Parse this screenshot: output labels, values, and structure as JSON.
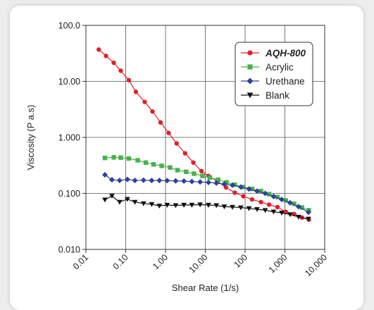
{
  "chart_data": {
    "type": "line",
    "title": "",
    "xlabel": "Shear Rate (1/s)",
    "ylabel": "Viscosity (P a.s)",
    "x_scale": "log",
    "y_scale": "log",
    "xlim": [
      0.01,
      10000
    ],
    "ylim": [
      0.01,
      100
    ],
    "x_tick_values": [
      0.01,
      0.1,
      1,
      10,
      100,
      1000,
      10000
    ],
    "x_tick_labels": [
      "0.01",
      "0.10",
      "1.00",
      "10.00",
      "100",
      "1,000",
      "10,000"
    ],
    "y_tick_values": [
      0.01,
      0.1,
      1,
      10,
      100
    ],
    "y_tick_labels": [
      "0.010",
      "0.100",
      "1.000",
      "10.00",
      "100.0"
    ],
    "grid": true,
    "legend_position": "top-right",
    "series": [
      {
        "name": "AQH-800",
        "color": "#e41f26",
        "label_color": "#1a73c2",
        "marker": "circle",
        "points": [
          [
            0.021,
            37
          ],
          [
            0.032,
            28.5
          ],
          [
            0.05,
            21.5
          ],
          [
            0.075,
            15.5
          ],
          [
            0.12,
            10.5
          ],
          [
            0.18,
            6.5
          ],
          [
            0.3,
            4.3
          ],
          [
            0.47,
            2.9
          ],
          [
            0.75,
            1.85
          ],
          [
            1.2,
            1.2
          ],
          [
            1.9,
            0.78
          ],
          [
            3.1,
            0.52
          ],
          [
            5,
            0.355
          ],
          [
            8,
            0.25
          ],
          [
            12,
            0.205
          ],
          [
            20,
            0.165
          ],
          [
            33,
            0.128
          ],
          [
            55,
            0.103
          ],
          [
            90,
            0.089
          ],
          [
            150,
            0.078
          ],
          [
            250,
            0.07
          ],
          [
            400,
            0.063
          ],
          [
            650,
            0.057
          ],
          [
            1050,
            0.047
          ],
          [
            1700,
            0.043
          ],
          [
            2700,
            0.037
          ],
          [
            4000,
            0.034
          ]
        ]
      },
      {
        "name": "Acrylic",
        "color": "#46b24a",
        "label_color": "#222222",
        "marker": "square",
        "points": [
          [
            0.03,
            0.43
          ],
          [
            0.05,
            0.44
          ],
          [
            0.075,
            0.435
          ],
          [
            0.12,
            0.42
          ],
          [
            0.2,
            0.39
          ],
          [
            0.32,
            0.355
          ],
          [
            0.5,
            0.33
          ],
          [
            0.8,
            0.31
          ],
          [
            1.3,
            0.29
          ],
          [
            2,
            0.26
          ],
          [
            3.3,
            0.243
          ],
          [
            5.2,
            0.225
          ],
          [
            8.5,
            0.205
          ],
          [
            13,
            0.192
          ],
          [
            21,
            0.175
          ],
          [
            34,
            0.158
          ],
          [
            55,
            0.143
          ],
          [
            90,
            0.13
          ],
          [
            150,
            0.12
          ],
          [
            250,
            0.11
          ],
          [
            400,
            0.097
          ],
          [
            650,
            0.086
          ],
          [
            1050,
            0.075
          ],
          [
            1700,
            0.065
          ],
          [
            2700,
            0.056
          ],
          [
            4000,
            0.05
          ]
        ]
      },
      {
        "name": "Urethane",
        "color": "#2e3f9e",
        "label_color": "#222222",
        "marker": "diamond",
        "points": [
          [
            0.03,
            0.215
          ],
          [
            0.045,
            0.175
          ],
          [
            0.07,
            0.17
          ],
          [
            0.11,
            0.178
          ],
          [
            0.17,
            0.17
          ],
          [
            0.28,
            0.172
          ],
          [
            0.45,
            0.17
          ],
          [
            0.7,
            0.17
          ],
          [
            1.1,
            0.169
          ],
          [
            1.8,
            0.167
          ],
          [
            2.9,
            0.166
          ],
          [
            4.6,
            0.163
          ],
          [
            7.4,
            0.16
          ],
          [
            12,
            0.157
          ],
          [
            19,
            0.153
          ],
          [
            30,
            0.147
          ],
          [
            48,
            0.14
          ],
          [
            78,
            0.13
          ],
          [
            125,
            0.12
          ],
          [
            200,
            0.11
          ],
          [
            320,
            0.1
          ],
          [
            520,
            0.088
          ],
          [
            830,
            0.078
          ],
          [
            1350,
            0.068
          ],
          [
            2200,
            0.058
          ],
          [
            3900,
            0.046
          ]
        ]
      },
      {
        "name": "Blank",
        "color": "#111111",
        "label_color": "#222222",
        "marker": "triangle-down",
        "points": [
          [
            0.03,
            0.077
          ],
          [
            0.045,
            0.09
          ],
          [
            0.07,
            0.07
          ],
          [
            0.11,
            0.079
          ],
          [
            0.17,
            0.07
          ],
          [
            0.28,
            0.066
          ],
          [
            0.45,
            0.064
          ],
          [
            0.7,
            0.06
          ],
          [
            1.1,
            0.062
          ],
          [
            1.8,
            0.061
          ],
          [
            2.9,
            0.062
          ],
          [
            4.6,
            0.062
          ],
          [
            7.4,
            0.063
          ],
          [
            12,
            0.062
          ],
          [
            19,
            0.061
          ],
          [
            30,
            0.058
          ],
          [
            48,
            0.057
          ],
          [
            78,
            0.056
          ],
          [
            125,
            0.054
          ],
          [
            200,
            0.052
          ],
          [
            320,
            0.05
          ],
          [
            520,
            0.047
          ],
          [
            830,
            0.045
          ],
          [
            1350,
            0.042
          ],
          [
            2200,
            0.038
          ],
          [
            3900,
            0.035
          ]
        ]
      }
    ]
  }
}
